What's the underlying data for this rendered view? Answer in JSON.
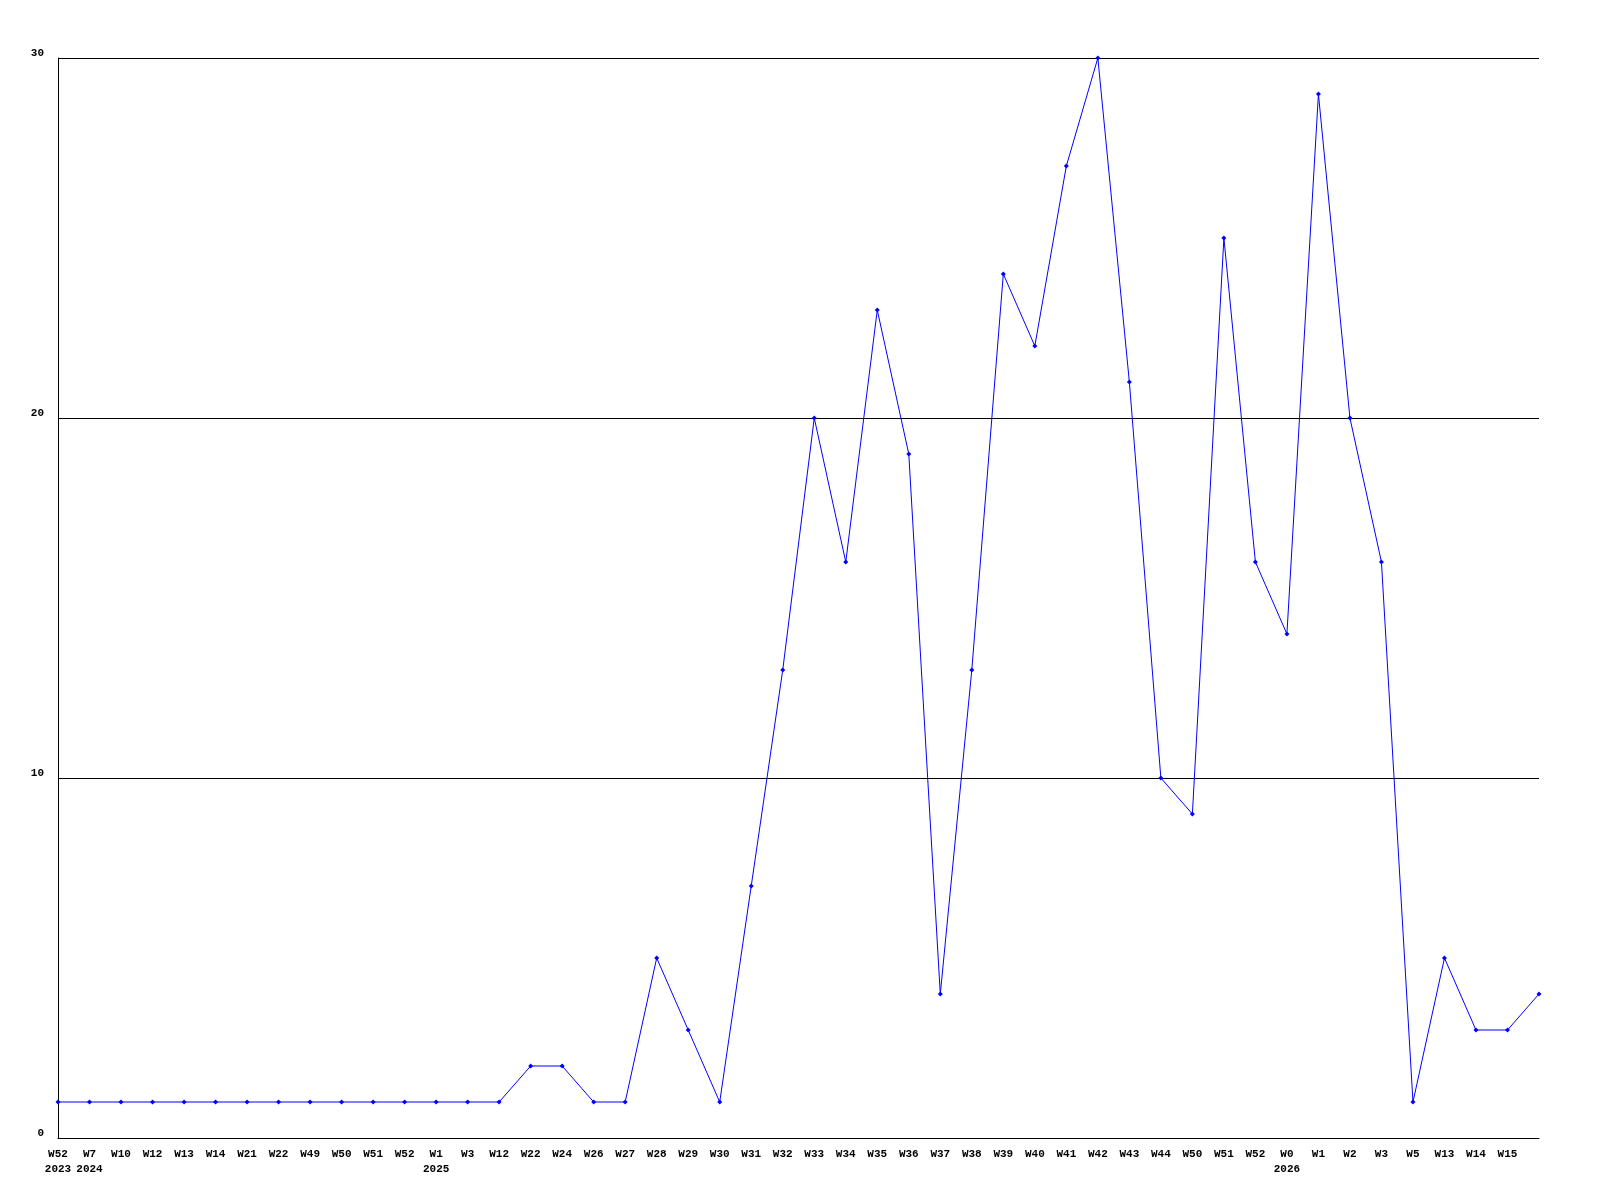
{
  "chart_data": {
    "type": "line",
    "categories": [
      "W52\n2023",
      "W7\n2024",
      "W10",
      "W12",
      "W13",
      "W14",
      "W21",
      "W22",
      "W49",
      "W50",
      "W51",
      "W52",
      "W1\n2025",
      "W3",
      "W12",
      "W22",
      "W24",
      "W26",
      "W27",
      "W28",
      "W29",
      "W30",
      "W31",
      "W32",
      "W33",
      "W34",
      "W35",
      "W36",
      "W37",
      "W38",
      "W39",
      "W40",
      "W41",
      "W42",
      "W43",
      "W44",
      "W50",
      "W51",
      "W52",
      "W0\n2026",
      "W1",
      "W2",
      "W3",
      "W5",
      "W13",
      "W14",
      "W15",
      null
    ],
    "series": [
      {
        "color": "#0000ff",
        "values": [
          1,
          1,
          1,
          1,
          1,
          1,
          1,
          1,
          1,
          1,
          1,
          1,
          1,
          1,
          1,
          2,
          2,
          1,
          1,
          5,
          3,
          1,
          7,
          13,
          20,
          16,
          23,
          19,
          4,
          13,
          24,
          22,
          27,
          30,
          21,
          10,
          9,
          25,
          16,
          14,
          29,
          20,
          16,
          1,
          5,
          3,
          3,
          4
        ]
      }
    ],
    "ylim": [
      0,
      30
    ],
    "yticks": [
      0,
      10,
      20,
      30
    ],
    "grid": "y",
    "marker": "diamond",
    "line_style": "solid"
  }
}
